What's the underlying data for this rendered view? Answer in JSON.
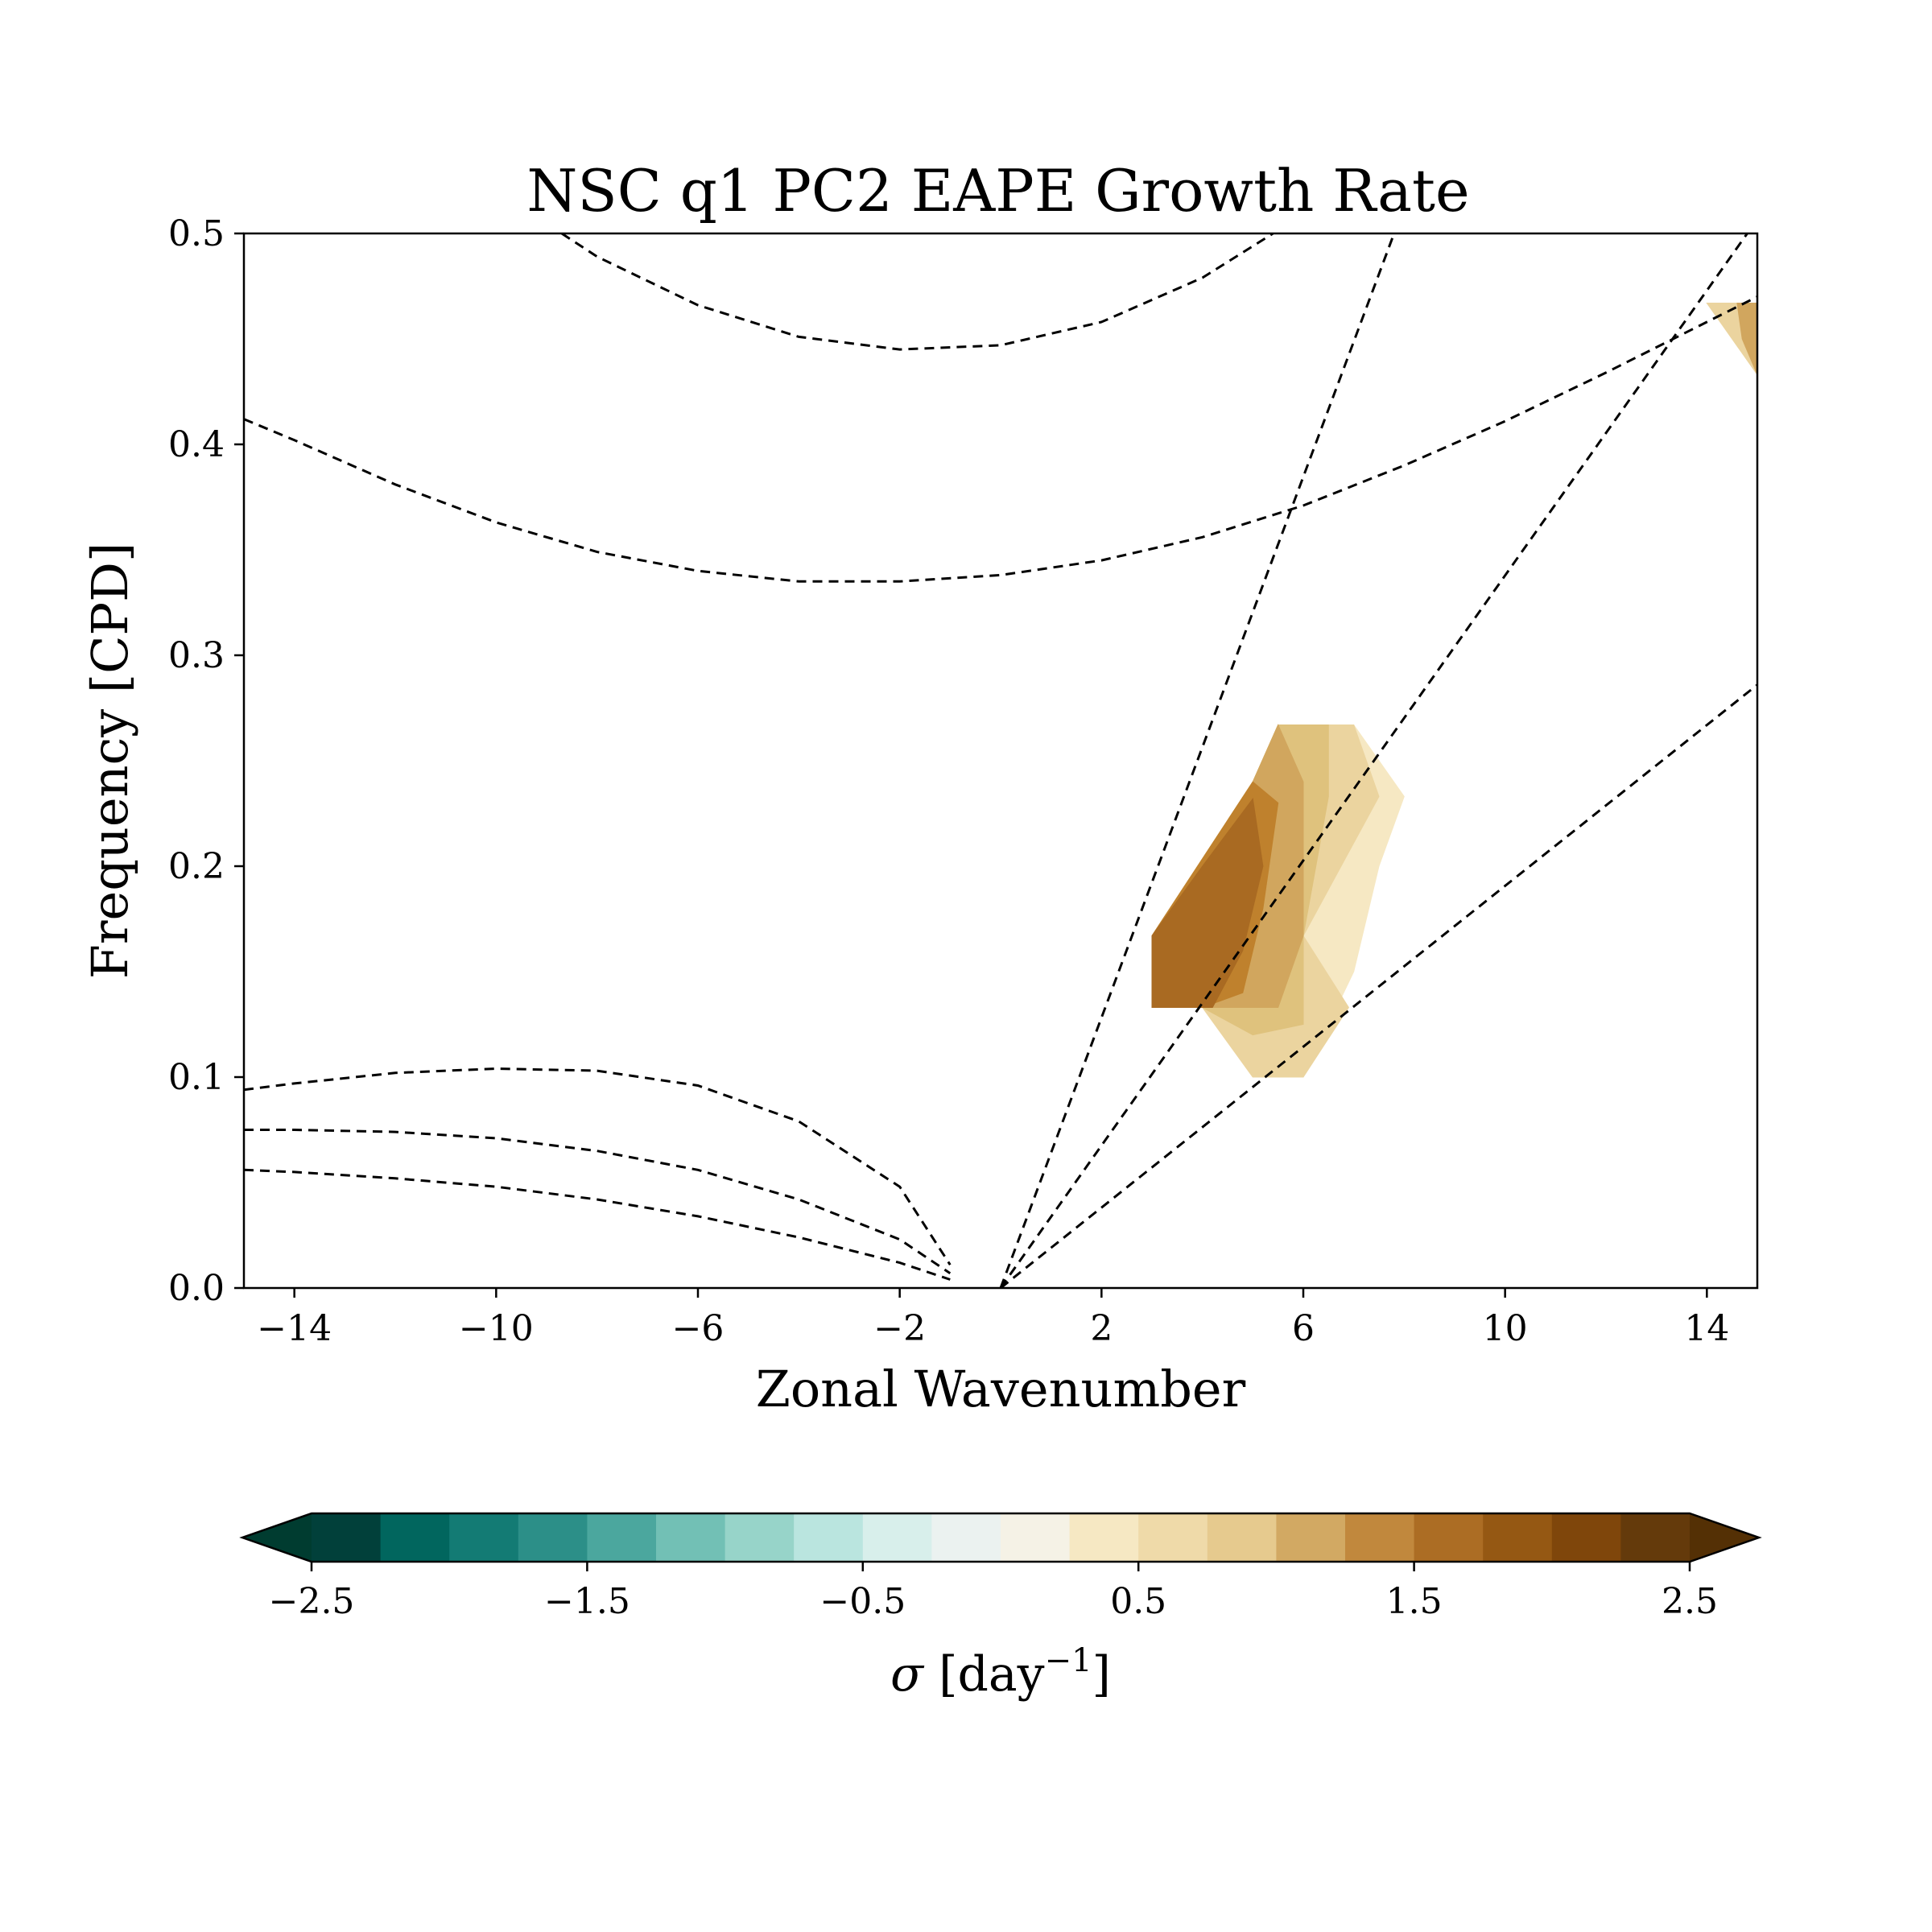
{
  "chart_data": {
    "type": "contourf",
    "title": "NSC q1 PC2 EAPE Growth Rate",
    "xlabel": "Zonal Wavenumber",
    "ylabel": "Frequency [CPD]",
    "xlim": [
      -15,
      15
    ],
    "ylim": [
      0,
      0.5
    ],
    "x_ticks": [
      -14,
      -10,
      -6,
      -2,
      2,
      6,
      10,
      14
    ],
    "x_tick_labels": [
      "−14",
      "−10",
      "−6",
      "−2",
      "2",
      "6",
      "10",
      "14"
    ],
    "y_ticks": [
      0.0,
      0.1,
      0.2,
      0.3,
      0.4,
      0.5
    ],
    "y_tick_labels": [
      "0.0",
      "0.1",
      "0.2",
      "0.3",
      "0.4",
      "0.5"
    ],
    "grid": false,
    "contour_regions": [
      {
        "level_min": 0.5,
        "color": "#f6e8c3",
        "polygon": [
          [
            3,
            0.133
          ],
          [
            3,
            0.167
          ],
          [
            5,
            0.24
          ],
          [
            5.5,
            0.267
          ],
          [
            7,
            0.267
          ],
          [
            8,
            0.233
          ],
          [
            7.5,
            0.2
          ],
          [
            7,
            0.15
          ],
          [
            6,
            0.1
          ],
          [
            5,
            0.1
          ],
          [
            4,
            0.133
          ]
        ]
      },
      {
        "level_min": 0.75,
        "color": "#ebd49f",
        "polygon": [
          [
            3,
            0.133
          ],
          [
            3,
            0.167
          ],
          [
            5,
            0.24
          ],
          [
            5.5,
            0.267
          ],
          [
            7,
            0.267
          ],
          [
            7.5,
            0.233
          ],
          [
            6,
            0.167
          ],
          [
            6.9,
            0.133
          ],
          [
            6,
            0.1
          ],
          [
            5,
            0.1
          ],
          [
            4,
            0.133
          ]
        ]
      },
      {
        "level_min": 1.0,
        "color": "#dfc27d",
        "polygon": [
          [
            3,
            0.133
          ],
          [
            3,
            0.167
          ],
          [
            5,
            0.24
          ],
          [
            5.5,
            0.267
          ],
          [
            6.5,
            0.267
          ],
          [
            6.5,
            0.233
          ],
          [
            6,
            0.167
          ],
          [
            6,
            0.125
          ],
          [
            5,
            0.12
          ],
          [
            4,
            0.133
          ]
        ]
      },
      {
        "level_min": 1.25,
        "color": "#d1a65e",
        "polygon": [
          [
            3,
            0.133
          ],
          [
            3,
            0.167
          ],
          [
            5,
            0.24
          ],
          [
            5.5,
            0.267
          ],
          [
            6,
            0.24
          ],
          [
            6,
            0.167
          ],
          [
            5.5,
            0.133
          ],
          [
            5,
            0.133
          ],
          [
            4,
            0.133
          ]
        ]
      },
      {
        "level_min": 1.5,
        "color": "#bf812d",
        "polygon": [
          [
            3,
            0.133
          ],
          [
            3,
            0.167
          ],
          [
            5,
            0.24
          ],
          [
            5.5,
            0.23
          ],
          [
            5.2,
            0.18
          ],
          [
            4.8,
            0.14
          ],
          [
            4,
            0.133
          ]
        ]
      },
      {
        "level_min": 1.75,
        "color": "#a96a22",
        "polygon": [
          [
            3,
            0.133
          ],
          [
            3,
            0.167
          ],
          [
            4,
            0.2
          ],
          [
            5,
            0.232
          ],
          [
            5.2,
            0.2
          ],
          [
            4.8,
            0.16
          ],
          [
            4.2,
            0.133
          ]
        ]
      },
      {
        "level_min": 0.5,
        "color": "#ebd49f",
        "polygon": [
          [
            14,
            0.467
          ],
          [
            15,
            0.467
          ],
          [
            15,
            0.433
          ]
        ]
      },
      {
        "level_min": 1.0,
        "color": "#d1a65e",
        "polygon": [
          [
            14.6,
            0.467
          ],
          [
            15,
            0.467
          ],
          [
            15,
            0.433
          ],
          [
            14.7,
            0.45
          ]
        ]
      }
    ],
    "dispersion_curves": [
      {
        "group": "kelvin",
        "x": [
          0,
          7.8
        ],
        "y": [
          0,
          0.5
        ]
      },
      {
        "group": "kelvin",
        "x": [
          0,
          14.8
        ],
        "y": [
          0,
          0.5
        ]
      },
      {
        "group": "kelvin",
        "x": [
          0,
          15
        ],
        "y": [
          0,
          0.286
        ]
      },
      {
        "group": "ig",
        "x": [
          -15,
          -14,
          -12,
          -10,
          -8,
          -6,
          -4,
          -2,
          0,
          2,
          4,
          6,
          8,
          10,
          12,
          14,
          15
        ],
        "y": [
          0.412,
          0.402,
          0.381,
          0.363,
          0.349,
          0.34,
          0.335,
          0.335,
          0.338,
          0.345,
          0.356,
          0.371,
          0.39,
          0.411,
          0.434,
          0.458,
          0.47
        ]
      },
      {
        "group": "ig",
        "x": [
          -8.7,
          -8,
          -6,
          -4,
          -2,
          0,
          2,
          4,
          5.4
        ],
        "y": [
          0.5,
          0.489,
          0.466,
          0.451,
          0.445,
          0.447,
          0.458,
          0.479,
          0.5
        ]
      },
      {
        "group": "er",
        "x": [
          -15,
          -14,
          -12,
          -10,
          -8,
          -6,
          -4,
          -2,
          -1
        ],
        "y": [
          0.094,
          0.097,
          0.102,
          0.104,
          0.103,
          0.096,
          0.079,
          0.048,
          0.011
        ]
      },
      {
        "group": "er",
        "x": [
          -15,
          -14,
          -12,
          -10,
          -8,
          -6,
          -4,
          -2,
          -1
        ],
        "y": [
          0.075,
          0.075,
          0.074,
          0.071,
          0.065,
          0.056,
          0.042,
          0.023,
          0.007
        ]
      },
      {
        "group": "er",
        "x": [
          -15,
          -14,
          -12,
          -10,
          -8,
          -6,
          -4,
          -2,
          -1
        ],
        "y": [
          0.056,
          0.055,
          0.052,
          0.048,
          0.042,
          0.034,
          0.024,
          0.012,
          0.004
        ]
      }
    ],
    "colorbar": {
      "orientation": "horizontal",
      "extend": "both",
      "label_symbol": "σ",
      "label_unit": " [day",
      "label_sup": "−1",
      "label_close": "]",
      "vmin": -2.5,
      "vmax": 2.5,
      "ticks": [
        -2.5,
        -1.5,
        -0.5,
        0.5,
        1.5,
        2.5
      ],
      "tick_labels": [
        "−2.5",
        "−1.5",
        "−0.5",
        "0.5",
        "1.5",
        "2.5"
      ],
      "extend_low_color": "#003c30",
      "extend_high_color": "#543005",
      "colors": [
        "#01403a",
        "#01665e",
        "#137b74",
        "#2c8f88",
        "#4ba79e",
        "#72c0b5",
        "#97d4c9",
        "#bae5df",
        "#d8efeb",
        "#ebf2f0",
        "#f5f2e6",
        "#f6e8c3",
        "#efdaa9",
        "#e6ca8e",
        "#d2a963",
        "#c1883d",
        "#ac6d24",
        "#955813",
        "#7f460b",
        "#643a0b"
      ]
    }
  }
}
